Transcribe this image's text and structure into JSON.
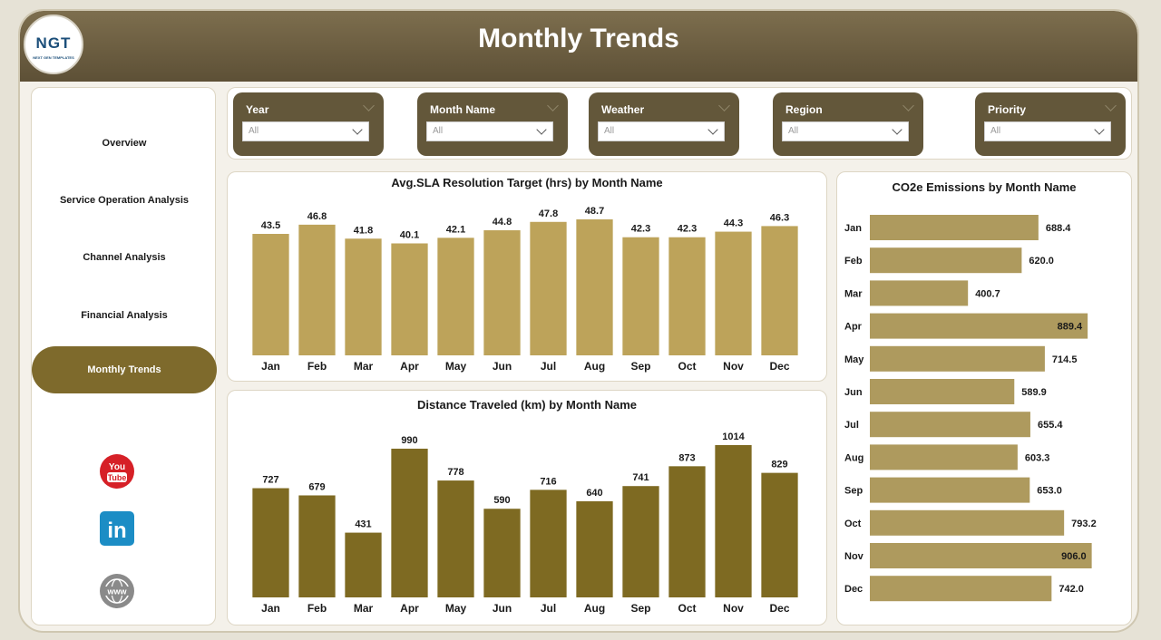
{
  "header": {
    "title": "Monthly Trends",
    "logo_text": "NGT",
    "logo_subtext": "NEXT GEN TEMPLATES"
  },
  "sidebar": {
    "items": [
      {
        "label": "Overview"
      },
      {
        "label": "Service Operation Analysis"
      },
      {
        "label": "Channel Analysis"
      },
      {
        "label": "Financial Analysis"
      },
      {
        "label": "Monthly Trends",
        "active": true
      }
    ],
    "social": [
      {
        "icon": "youtube-icon",
        "label": "You Tube",
        "color": "#d62027"
      },
      {
        "icon": "linkedin-icon",
        "label": "in",
        "color": "#1c8dc5"
      },
      {
        "icon": "globe-icon",
        "label": "www",
        "color": "#8a8a8a"
      }
    ]
  },
  "filters": [
    {
      "label": "Year",
      "value": "All"
    },
    {
      "label": "Month Name",
      "value": "All"
    },
    {
      "label": "Weather",
      "value": "All"
    },
    {
      "label": "Region",
      "value": "All"
    },
    {
      "label": "Priority",
      "value": "All"
    }
  ],
  "colors": {
    "accent": "#7e6a2c",
    "header": "#63573a",
    "bar_light": "#bda35a",
    "bar_dark": "#7e6a22",
    "bar_hbar": "#ae9a5e"
  },
  "chart_data": [
    {
      "type": "bar",
      "title": "Avg.SLA Resolution Target (hrs) by Month Name",
      "categories": [
        "Jan",
        "Feb",
        "Mar",
        "Apr",
        "May",
        "Jun",
        "Jul",
        "Aug",
        "Sep",
        "Oct",
        "Nov",
        "Dec"
      ],
      "values": [
        43.5,
        46.8,
        41.8,
        40.1,
        42.1,
        44.8,
        47.8,
        48.7,
        42.3,
        42.3,
        44.3,
        46.3
      ],
      "labels": [
        "43.5",
        "46.8",
        "41.8",
        "40.1",
        "42.1",
        "44.8",
        "47.8",
        "48.7",
        "42.3",
        "42.3",
        "44.3",
        "46.3"
      ],
      "ylim": [
        0,
        50
      ],
      "grid": false,
      "color": "#bda35a"
    },
    {
      "type": "bar",
      "title": "Distance Traveled (km) by Month Name",
      "categories": [
        "Jan",
        "Feb",
        "Mar",
        "Apr",
        "May",
        "Jun",
        "Jul",
        "Aug",
        "Sep",
        "Oct",
        "Nov",
        "Dec"
      ],
      "values": [
        727,
        679,
        431,
        990,
        778,
        590,
        716,
        640,
        741,
        873,
        1014,
        829
      ],
      "labels": [
        "727",
        "679",
        "431",
        "990",
        "778",
        "590",
        "716",
        "640",
        "741",
        "873",
        "1014",
        "829"
      ],
      "ylim": [
        0,
        1050
      ],
      "grid": false,
      "color": "#7e6a22"
    },
    {
      "type": "bar",
      "orientation": "horizontal",
      "title": "CO2e Emissions by Month Name",
      "categories": [
        "Jan",
        "Feb",
        "Mar",
        "Apr",
        "May",
        "Jun",
        "Jul",
        "Aug",
        "Sep",
        "Oct",
        "Nov",
        "Dec"
      ],
      "values": [
        688.4,
        620.0,
        400.7,
        889.4,
        714.5,
        589.9,
        655.4,
        603.3,
        653.0,
        793.2,
        906.0,
        742.0
      ],
      "labels": [
        "688.4",
        "620.0",
        "400.7",
        "889.4",
        "714.5",
        "589.9",
        "655.4",
        "603.3",
        "653.0",
        "793.2",
        "906.0",
        "742.0"
      ],
      "xlim": [
        0,
        1000
      ],
      "grid": false,
      "color": "#ae9a5e"
    }
  ]
}
